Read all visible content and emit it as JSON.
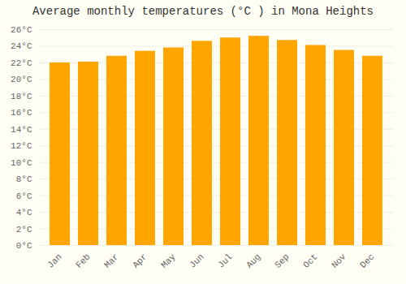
{
  "chart_data": {
    "type": "bar",
    "title": "Average monthly temperatures (°C ) in Mona Heights",
    "categories": [
      "Jan",
      "Feb",
      "Mar",
      "Apr",
      "May",
      "Jun",
      "Jul",
      "Aug",
      "Sep",
      "Oct",
      "Nov",
      "Dec"
    ],
    "values": [
      22.0,
      22.1,
      22.8,
      23.4,
      23.8,
      24.6,
      25.0,
      25.2,
      24.7,
      24.1,
      23.5,
      22.8
    ],
    "color": "#FFA500",
    "ylim": [
      0,
      26
    ],
    "yticks": [
      {
        "value": 0,
        "label": "0°C"
      },
      {
        "value": 2,
        "label": "2°C"
      },
      {
        "value": 4,
        "label": "4°C"
      },
      {
        "value": 6,
        "label": "6°C"
      },
      {
        "value": 8,
        "label": "8°C"
      },
      {
        "value": 10,
        "label": "10°C"
      },
      {
        "value": 12,
        "label": "12°C"
      },
      {
        "value": 14,
        "label": "14°C"
      },
      {
        "value": 16,
        "label": "16°C"
      },
      {
        "value": 18,
        "label": "18°C"
      },
      {
        "value": 20,
        "label": "20°C"
      },
      {
        "value": 22,
        "label": "22°C"
      },
      {
        "value": 24,
        "label": "24°C"
      },
      {
        "value": 26,
        "label": "26°C"
      }
    ],
    "grid": true
  }
}
